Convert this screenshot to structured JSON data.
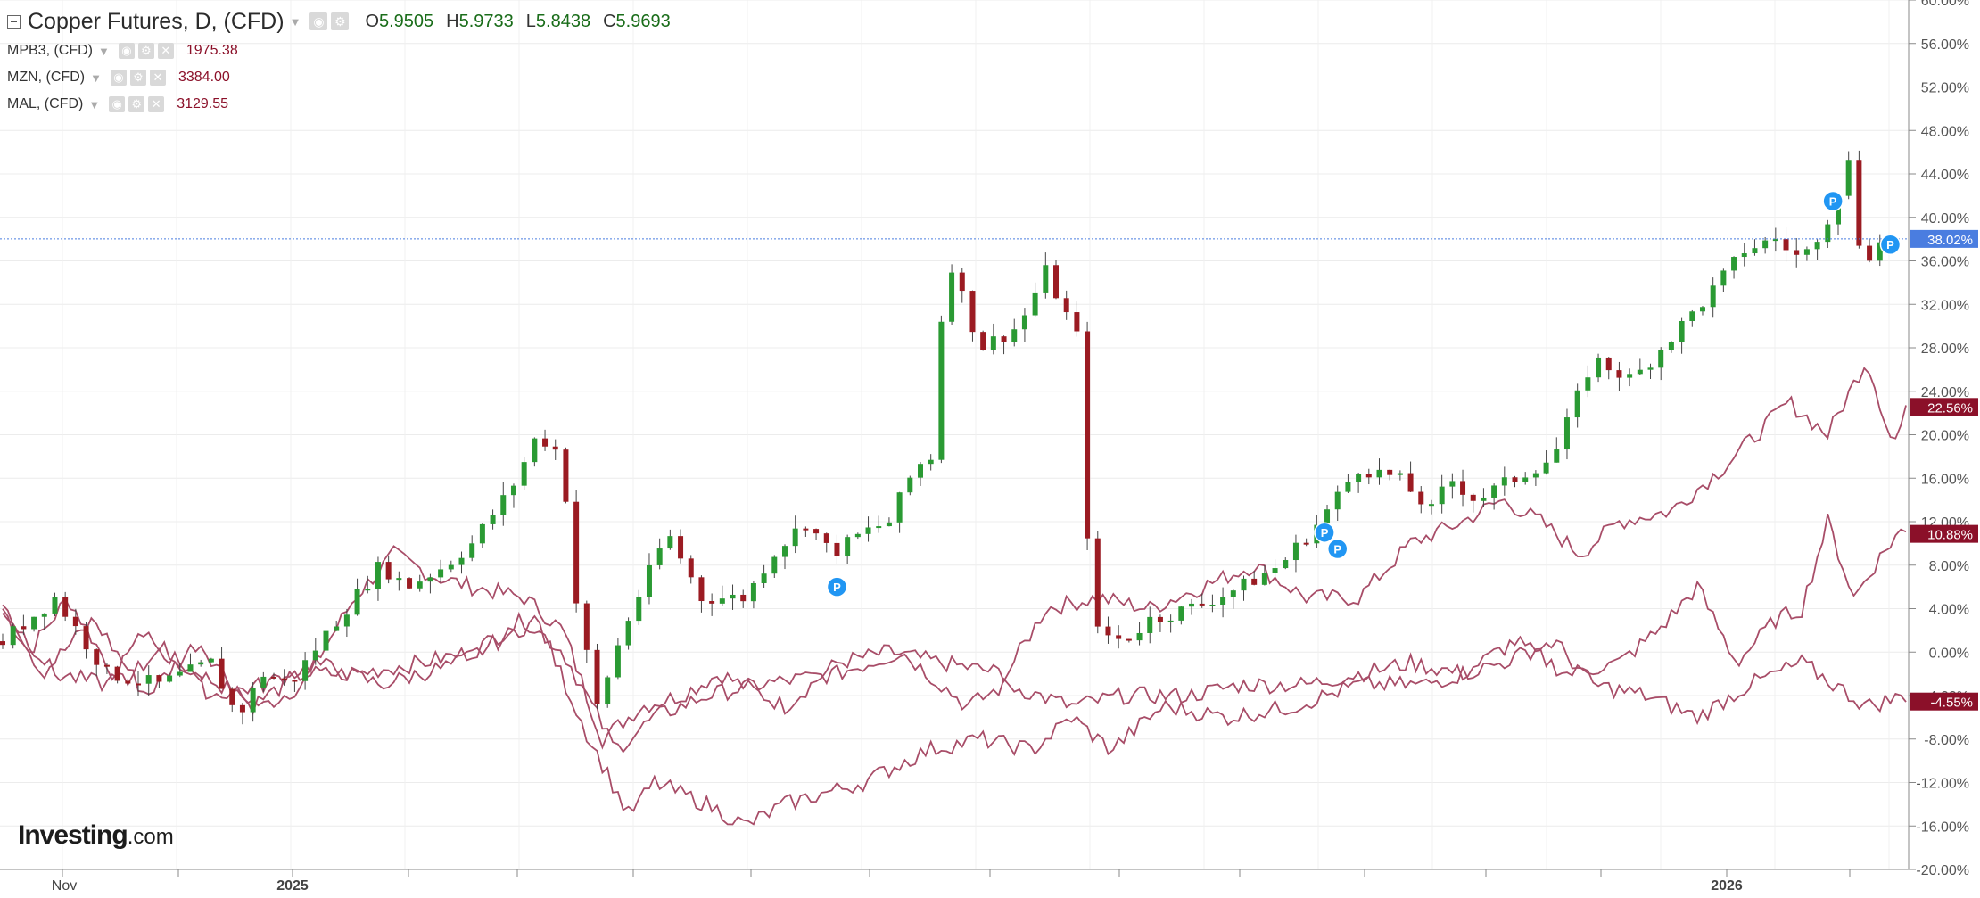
{
  "header": {
    "title": "Copper Futures, D, (CFD)",
    "open_label": "O",
    "open": "5.9505",
    "high_label": "H",
    "high": "5.9733",
    "low_label": "L",
    "low": "5.8438",
    "close_label": "C",
    "close": "5.9693",
    "icons": [
      "collapse-icon",
      "eye-icon",
      "gear-icon",
      "dropdown-caret-icon"
    ]
  },
  "comparisons": [
    {
      "symbol": "MPB3, (CFD)",
      "value": "1975.38"
    },
    {
      "symbol": "MZN, (CFD)",
      "value": "3384.00"
    },
    {
      "symbol": "MAL, (CFD)",
      "value": "3129.55"
    }
  ],
  "logo": {
    "brand": "Investing",
    "domain": ".com"
  },
  "colors": {
    "up": "#2a9a33",
    "down": "#9b1b22",
    "compare_line": "#a84d68",
    "price_tag": "#4a7de0",
    "tag_dark": "#8b1029",
    "marker": "#2196f3"
  },
  "chart_data": {
    "type": "candlestick",
    "y_unit": "%",
    "ylim": [
      -20,
      60
    ],
    "y_ticks": [
      "60.00%",
      "56.00%",
      "52.00%",
      "48.00%",
      "44.00%",
      "40.00%",
      "36.00%",
      "32.00%",
      "28.00%",
      "24.00%",
      "20.00%",
      "16.00%",
      "12.00%",
      "8.00%",
      "4.00%",
      "0.00%",
      "-4.00%",
      "-8.00%",
      "-12.00%",
      "-16.00%",
      "-20.00%"
    ],
    "x_labels": [
      "Nov",
      "2025",
      "2026"
    ],
    "last_price_tag": "38.02%",
    "series_tags": [
      "22.56%",
      "10.88%",
      "-4.55%"
    ],
    "candle_anchors": [
      [
        0,
        1
      ],
      [
        20,
        5
      ],
      [
        40,
        -2
      ],
      [
        60,
        -3
      ],
      [
        80,
        -1
      ],
      [
        90,
        -6
      ],
      [
        100,
        -2
      ],
      [
        110,
        -3
      ],
      [
        125,
        2
      ],
      [
        145,
        8
      ],
      [
        155,
        6
      ],
      [
        170,
        8
      ],
      [
        180,
        10
      ],
      [
        195,
        15
      ],
      [
        205,
        20
      ],
      [
        215,
        18
      ],
      [
        218,
        7
      ],
      [
        228,
        -5
      ],
      [
        238,
        2
      ],
      [
        255,
        11
      ],
      [
        268,
        5
      ],
      [
        285,
        5
      ],
      [
        295,
        9
      ],
      [
        308,
        12
      ],
      [
        318,
        9
      ],
      [
        330,
        11
      ],
      [
        340,
        12
      ],
      [
        350,
        17
      ],
      [
        356,
        18
      ],
      [
        362,
        37
      ],
      [
        375,
        28
      ],
      [
        390,
        30
      ],
      [
        400,
        35
      ],
      [
        412,
        29
      ],
      [
        418,
        2
      ],
      [
        430,
        1
      ],
      [
        440,
        3
      ],
      [
        455,
        4
      ],
      [
        475,
        6
      ],
      [
        490,
        8
      ],
      [
        505,
        12
      ],
      [
        520,
        17
      ],
      [
        535,
        16
      ],
      [
        548,
        13
      ],
      [
        555,
        16
      ],
      [
        565,
        14
      ],
      [
        580,
        16
      ],
      [
        595,
        18
      ],
      [
        610,
        27
      ],
      [
        625,
        25
      ],
      [
        640,
        29
      ],
      [
        655,
        33
      ],
      [
        668,
        37
      ],
      [
        680,
        38
      ],
      [
        690,
        36
      ],
      [
        700,
        40
      ],
      [
        708,
        45
      ],
      [
        713,
        36
      ],
      [
        722,
        38
      ]
    ],
    "compare_anchors": [
      [
        [
          0,
          4
        ],
        [
          10,
          0
        ],
        [
          25,
          5
        ],
        [
          45,
          -3
        ],
        [
          60,
          0
        ],
        [
          75,
          -2
        ],
        [
          100,
          -5
        ],
        [
          115,
          -3
        ],
        [
          135,
          5
        ],
        [
          150,
          9
        ],
        [
          165,
          7
        ],
        [
          180,
          6
        ],
        [
          200,
          5
        ],
        [
          215,
          2
        ],
        [
          230,
          -8
        ],
        [
          245,
          -5
        ],
        [
          260,
          -4
        ],
        [
          275,
          -2
        ],
        [
          300,
          -5
        ],
        [
          320,
          -1
        ],
        [
          340,
          0
        ],
        [
          360,
          -1
        ],
        [
          385,
          -2
        ],
        [
          400,
          4
        ],
        [
          420,
          5
        ],
        [
          440,
          4
        ],
        [
          460,
          6
        ],
        [
          480,
          8
        ],
        [
          500,
          5
        ],
        [
          520,
          5
        ],
        [
          540,
          10
        ],
        [
          560,
          12
        ],
        [
          575,
          14
        ],
        [
          590,
          12
        ],
        [
          605,
          9
        ],
        [
          620,
          12
        ],
        [
          640,
          13
        ],
        [
          660,
          17
        ],
        [
          685,
          23
        ],
        [
          700,
          20
        ],
        [
          715,
          27
        ],
        [
          725,
          19
        ],
        [
          730,
          22
        ]
      ],
      [
        [
          0,
          5
        ],
        [
          15,
          -2
        ],
        [
          35,
          3
        ],
        [
          55,
          -4
        ],
        [
          75,
          1
        ],
        [
          95,
          -5
        ],
        [
          115,
          -2
        ],
        [
          135,
          -2
        ],
        [
          160,
          -1
        ],
        [
          180,
          0
        ],
        [
          200,
          3
        ],
        [
          215,
          0
        ],
        [
          235,
          -9
        ],
        [
          250,
          -6
        ],
        [
          270,
          -4
        ],
        [
          290,
          -3
        ],
        [
          320,
          -2
        ],
        [
          345,
          0
        ],
        [
          370,
          -5
        ],
        [
          385,
          -3
        ],
        [
          410,
          -5
        ],
        [
          430,
          -4
        ],
        [
          455,
          -4
        ],
        [
          475,
          -3
        ],
        [
          500,
          -3
        ],
        [
          520,
          -2
        ],
        [
          540,
          -1
        ],
        [
          560,
          -2
        ],
        [
          580,
          1
        ],
        [
          600,
          -2
        ],
        [
          620,
          -1
        ],
        [
          635,
          2
        ],
        [
          650,
          6
        ],
        [
          665,
          -1
        ],
        [
          680,
          3
        ],
        [
          690,
          4
        ],
        [
          700,
          12
        ],
        [
          710,
          5
        ],
        [
          718,
          8
        ],
        [
          727,
          11
        ]
      ],
      [
        [
          0,
          4
        ],
        [
          20,
          -2
        ],
        [
          40,
          -3
        ],
        [
          55,
          2
        ],
        [
          80,
          -4
        ],
        [
          100,
          -3
        ],
        [
          120,
          -1
        ],
        [
          145,
          -3
        ],
        [
          160,
          -2
        ],
        [
          175,
          -1
        ],
        [
          190,
          1
        ],
        [
          205,
          3
        ],
        [
          225,
          -8
        ],
        [
          240,
          -15
        ],
        [
          250,
          -12
        ],
        [
          270,
          -14
        ],
        [
          285,
          -16
        ],
        [
          300,
          -14
        ],
        [
          330,
          -12
        ],
        [
          355,
          -9
        ],
        [
          375,
          -8
        ],
        [
          395,
          -9
        ],
        [
          410,
          -6
        ],
        [
          425,
          -9
        ],
        [
          445,
          -5
        ],
        [
          470,
          -6
        ],
        [
          495,
          -5
        ],
        [
          520,
          -3
        ],
        [
          545,
          -3
        ],
        [
          575,
          -1
        ],
        [
          595,
          1
        ],
        [
          610,
          -3
        ],
        [
          630,
          -4
        ],
        [
          650,
          -6
        ],
        [
          670,
          -3
        ],
        [
          690,
          -1
        ],
        [
          715,
          -5
        ],
        [
          730,
          -4
        ]
      ]
    ]
  }
}
